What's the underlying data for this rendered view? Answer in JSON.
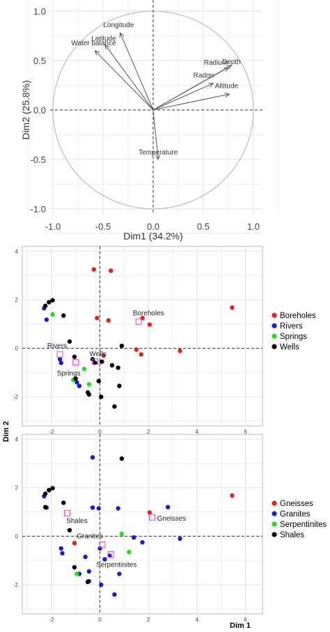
{
  "chart_data": [
    {
      "type": "scatter",
      "subtype": "variable-correlation-circle",
      "xlabel": "Dim1 (34.2%)",
      "ylabel": "Dim2 (25.8%)",
      "xlim": [
        -1.0,
        1.0
      ],
      "ylim": [
        -1.0,
        1.0
      ],
      "xticks": [
        "-1.0",
        "-0.5",
        "0.0",
        "0.5",
        "1.0"
      ],
      "yticks": [
        "-1.0",
        "-0.5",
        "0.0",
        "0.5",
        "1.0"
      ],
      "grid": true,
      "vectors": [
        {
          "name": "Longitude",
          "x": -0.33,
          "y": 0.78
        },
        {
          "name": "Latitude",
          "x": -0.48,
          "y": 0.66
        },
        {
          "name": "Water balance",
          "x": -0.58,
          "y": 0.6
        },
        {
          "name": "Radium",
          "x": 0.75,
          "y": 0.43
        },
        {
          "name": "Depth",
          "x": 0.78,
          "y": 0.45
        },
        {
          "name": "Radon",
          "x": 0.6,
          "y": 0.27
        },
        {
          "name": "Altitude",
          "x": 0.76,
          "y": 0.16
        },
        {
          "name": "Temperature",
          "x": 0.05,
          "y": -0.5
        }
      ]
    },
    {
      "type": "scatter",
      "xlim": [
        -3.2,
        6.7
      ],
      "ylim": [
        -3.2,
        4.2
      ],
      "xticks": [
        -2,
        0,
        2,
        4,
        6
      ],
      "yticks": [
        -2,
        0,
        2,
        4
      ],
      "grid": true,
      "legend": "right",
      "series": [
        {
          "name": "Boreholes",
          "color": "#ee1c1c",
          "points": [
            [
              -0.25,
              3.25
            ],
            [
              0.45,
              3.2
            ],
            [
              -0.12,
              1.25
            ],
            [
              0.35,
              1.15
            ],
            [
              1.75,
              1.25
            ],
            [
              2.05,
              0.98
            ],
            [
              5.45,
              1.68
            ],
            [
              3.3,
              -0.1
            ],
            [
              1.5,
              -0.05
            ],
            [
              1.7,
              -0.25
            ],
            [
              0.15,
              -0.3
            ]
          ]
        },
        {
          "name": "Rivers",
          "color": "#1c1ccf",
          "points": [
            [
              -2.3,
              1.65
            ],
            [
              -2.2,
              1.18
            ],
            [
              -1.65,
              -0.45
            ],
            [
              -1.6,
              -0.6
            ],
            [
              -0.95,
              -1.4
            ],
            [
              -0.85,
              -1.55
            ]
          ]
        },
        {
          "name": "Springs",
          "color": "#22dd22",
          "points": [
            [
              -1.95,
              1.4
            ],
            [
              -0.65,
              -0.85
            ],
            [
              -0.45,
              -1.48
            ],
            [
              -1.1,
              -1.3
            ]
          ]
        },
        {
          "name": "Wells",
          "color": "#000000",
          "points": [
            [
              -2.1,
              1.9
            ],
            [
              -1.95,
              1.98
            ],
            [
              -2.25,
              1.75
            ],
            [
              -1.5,
              1.35
            ],
            [
              -1.25,
              0.28
            ],
            [
              -1.05,
              -0.35
            ],
            [
              -0.2,
              -0.6
            ],
            [
              0.08,
              -0.55
            ],
            [
              0.5,
              -0.7
            ],
            [
              0.75,
              -0.8
            ],
            [
              0.9,
              0.1
            ],
            [
              -0.05,
              -1.35
            ],
            [
              -0.5,
              -1.82
            ],
            [
              -0.45,
              -1.9
            ],
            [
              0.05,
              -2.0
            ],
            [
              0.6,
              -2.4
            ],
            [
              0.8,
              -1.55
            ],
            [
              -1.0,
              -1.25
            ],
            [
              -0.3,
              -0.45
            ]
          ]
        }
      ],
      "centroids": [
        {
          "name": "Boreholes",
          "x": 1.6,
          "y": 1.1
        },
        {
          "name": "Rivers",
          "x": -1.65,
          "y": -0.25
        },
        {
          "name": "Springs",
          "x": -1.0,
          "y": -0.58
        },
        {
          "name": "Wells",
          "x": -0.2,
          "y": -0.55
        }
      ]
    },
    {
      "type": "scatter",
      "xlabel": "Dim 1",
      "xlim": [
        -3.2,
        6.7
      ],
      "ylim": [
        -3.2,
        4.2
      ],
      "xticks": [
        -2,
        0,
        2,
        4,
        6
      ],
      "yticks": [
        -2,
        0,
        2,
        4
      ],
      "grid": true,
      "legend": "right",
      "series": [
        {
          "name": "Gneisses",
          "color": "#ee1c1c",
          "points": [
            [
              5.45,
              1.68
            ],
            [
              2.05,
              0.98
            ],
            [
              -1.05,
              -0.28
            ]
          ]
        },
        {
          "name": "Granites",
          "color": "#1c1ccf",
          "points": [
            [
              -0.3,
              3.25
            ],
            [
              -2.3,
              1.65
            ],
            [
              -2.2,
              1.18
            ],
            [
              -0.3,
              1.18
            ],
            [
              -0.3,
              1.18
            ],
            [
              -0.05,
              1.15
            ],
            [
              0.75,
              1.15
            ],
            [
              2.8,
              1.2
            ],
            [
              3.3,
              -0.1
            ],
            [
              1.4,
              -0.05
            ],
            [
              1.75,
              -0.25
            ],
            [
              0.0,
              -0.5
            ],
            [
              -0.45,
              -1.45
            ],
            [
              -0.6,
              -0.85
            ],
            [
              -0.85,
              -1.55
            ],
            [
              -0.45,
              -1.85
            ],
            [
              0.05,
              -2.0
            ],
            [
              0.6,
              -2.4
            ],
            [
              0.8,
              -1.55
            ],
            [
              -1.6,
              -0.5
            ],
            [
              -1.55,
              -0.7
            ],
            [
              0.4,
              -0.8
            ],
            [
              0.2,
              -0.95
            ]
          ]
        },
        {
          "name": "Serpentinites",
          "color": "#22dd22",
          "points": [
            [
              -0.95,
              -1.55
            ],
            [
              0.9,
              0.1
            ],
            [
              1.2,
              -0.65
            ]
          ]
        },
        {
          "name": "Shales",
          "color": "#000000",
          "points": [
            [
              0.9,
              3.2
            ],
            [
              -2.1,
              1.9
            ],
            [
              -1.95,
              1.98
            ],
            [
              -2.25,
              1.75
            ],
            [
              -1.5,
              1.38
            ],
            [
              -1.25,
              0.25
            ],
            [
              -1.05,
              -1.28
            ],
            [
              -0.5,
              -1.88
            ],
            [
              -2.25,
              1.2
            ]
          ]
        }
      ],
      "centroids": [
        {
          "name": "Shales",
          "x": -1.35,
          "y": 0.95
        },
        {
          "name": "Gneisses",
          "x": 2.15,
          "y": 0.78
        },
        {
          "name": "Granites",
          "x": 0.1,
          "y": -0.35
        },
        {
          "name": "Serpentinites",
          "x": 0.45,
          "y": -0.75
        }
      ]
    }
  ],
  "shared_ylabel": "Dim 2"
}
